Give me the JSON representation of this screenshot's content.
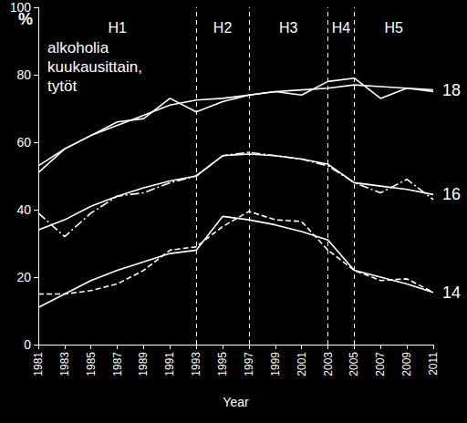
{
  "chart_data": {
    "type": "line",
    "y_label": "%",
    "x_label": "Year",
    "annotation": "alkoholia\nkuukausittain,\ntytöt",
    "dividers": [
      1993,
      1997,
      2003,
      2005
    ],
    "period_labels": [
      "H1",
      "H2",
      "H3",
      "H4",
      "H5"
    ],
    "x": [
      1981,
      1983,
      1985,
      1987,
      1989,
      1991,
      1993,
      1995,
      1997,
      1999,
      2001,
      2003,
      2005,
      2007,
      2009,
      2011
    ],
    "xlim": [
      1981,
      2011
    ],
    "xticks": [
      1981,
      1983,
      1985,
      1987,
      1989,
      1991,
      1993,
      1995,
      1997,
      1999,
      2001,
      2003,
      2005,
      2007,
      2009,
      2011
    ],
    "ylim": [
      0,
      100
    ],
    "yticks": [
      0,
      20,
      40,
      60,
      80,
      100
    ],
    "grid": false,
    "series": [
      {
        "name": "18",
        "color": "#ffffff",
        "line_style": "solid",
        "values": [
          51,
          58,
          62,
          66,
          67,
          73,
          69,
          72,
          74,
          75,
          74,
          78,
          79,
          73,
          76,
          75
        ]
      },
      {
        "name": "18",
        "color": "#ffffff",
        "line_style": "solid",
        "values": [
          53,
          58,
          62,
          65,
          68,
          71,
          72.5,
          73,
          74,
          75,
          75.5,
          76,
          77,
          76.5,
          76,
          75.5
        ]
      },
      {
        "name": "16",
        "color": "#ffffff",
        "line_style": "dashdot",
        "values": [
          39,
          32,
          39,
          44,
          45,
          48,
          50,
          56,
          57,
          56,
          55,
          53,
          48,
          45,
          49,
          43
        ]
      },
      {
        "name": "16",
        "color": "#ffffff",
        "line_style": "solid",
        "values": [
          34,
          37,
          41,
          44,
          46.5,
          48.5,
          50,
          56,
          56.5,
          56,
          55,
          53.5,
          48,
          47,
          46,
          44.5
        ]
      },
      {
        "name": "14",
        "color": "#ffffff",
        "line_style": "dashed",
        "values": [
          15,
          15,
          16,
          18,
          22,
          28,
          29,
          35,
          39.5,
          37,
          36.5,
          28,
          22,
          19,
          19.5,
          15.5
        ]
      },
      {
        "name": "14",
        "color": "#ffffff",
        "line_style": "solid",
        "values": [
          11,
          15,
          19,
          22,
          24.5,
          27,
          28,
          38,
          37,
          35.5,
          33.5,
          31,
          22,
          20,
          18,
          15.5
        ]
      }
    ]
  }
}
